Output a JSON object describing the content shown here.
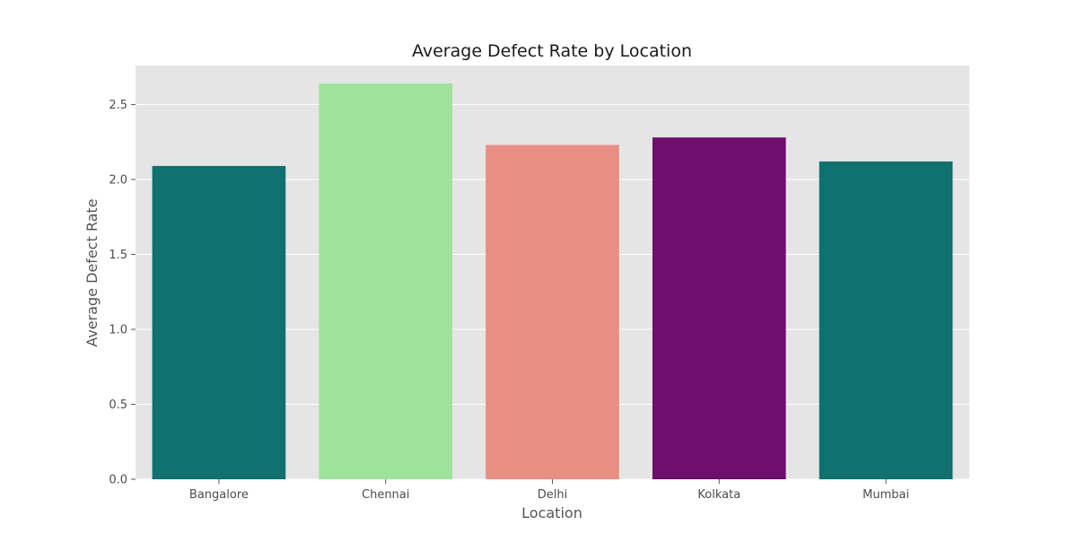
{
  "chart_data": {
    "type": "bar",
    "title": "Average Defect Rate by Location",
    "xlabel": "Location",
    "ylabel": "Average Defect Rate",
    "categories": [
      "Bangalore",
      "Chennai",
      "Delhi",
      "Kolkata",
      "Mumbai"
    ],
    "values": [
      2.09,
      2.64,
      2.23,
      2.28,
      2.12
    ],
    "bar_colors": [
      "#117070",
      "#9ee29c",
      "#e88e83",
      "#6e0f6e",
      "#117070"
    ],
    "ylim": [
      0,
      2.76
    ],
    "yticks": [
      0.0,
      0.5,
      1.0,
      1.5,
      2.0,
      2.5
    ],
    "ytick_labels": [
      "0.0",
      "0.5",
      "1.0",
      "1.5",
      "2.0",
      "2.5"
    ],
    "grid": true,
    "style": {
      "plot_background": "#e5e5e5",
      "grid_color": "#ffffff"
    }
  }
}
